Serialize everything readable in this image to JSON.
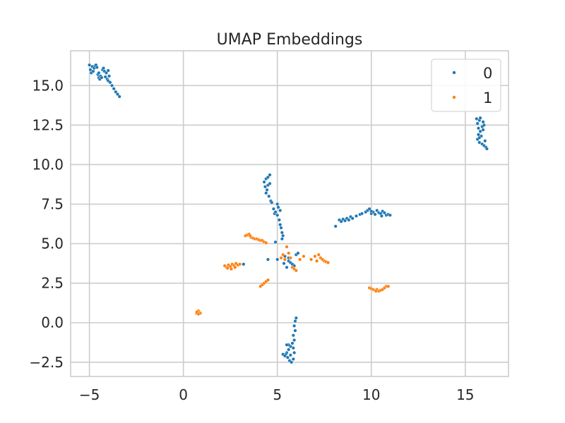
{
  "chart_data": {
    "type": "scatter",
    "title": "UMAP Embeddings",
    "xlabel": "",
    "ylabel": "",
    "xlim": [
      -6.0,
      17.3
    ],
    "ylim": [
      -3.4,
      17.2
    ],
    "xticks": [
      -5,
      0,
      5,
      10,
      15
    ],
    "xtick_labels": [
      "−5",
      "0",
      "5",
      "10",
      "15"
    ],
    "yticks": [
      -2.5,
      0.0,
      2.5,
      5.0,
      7.5,
      10.0,
      12.5,
      15.0
    ],
    "ytick_labels": [
      "−2.5",
      "0.0",
      "2.5",
      "5.0",
      "7.5",
      "10.0",
      "12.5",
      "15.0"
    ],
    "grid": true,
    "legend_position": "top-right",
    "colors": {
      "0": "#1f77b4",
      "1": "#ff7f0e",
      "grid": "#cccccc",
      "axes_edge": "#cccccc"
    },
    "series": [
      {
        "name": "0",
        "color": "#1f77b4",
        "points": [
          [
            -5.0,
            16.3
          ],
          [
            -4.95,
            16.0
          ],
          [
            -4.9,
            15.8
          ],
          [
            -4.85,
            16.2
          ],
          [
            -4.8,
            15.9
          ],
          [
            -4.75,
            16.1
          ],
          [
            -4.7,
            16.25
          ],
          [
            -4.65,
            16.3
          ],
          [
            -4.6,
            16.15
          ],
          [
            -4.55,
            15.7
          ],
          [
            -4.5,
            15.5
          ],
          [
            -4.45,
            15.4
          ],
          [
            -4.4,
            15.6
          ],
          [
            -4.35,
            15.5
          ],
          [
            -4.3,
            16.0
          ],
          [
            -4.25,
            16.1
          ],
          [
            -4.2,
            15.9
          ],
          [
            -4.1,
            15.8
          ],
          [
            -4.05,
            15.4
          ],
          [
            -4.0,
            15.3
          ],
          [
            -3.95,
            15.6
          ],
          [
            -3.9,
            15.2
          ],
          [
            -3.8,
            15.0
          ],
          [
            -3.7,
            14.8
          ],
          [
            -3.6,
            14.6
          ],
          [
            -3.5,
            14.45
          ],
          [
            -3.4,
            14.3
          ],
          [
            -4.5,
            15.8
          ],
          [
            -4.0,
            15.95
          ],
          [
            -4.15,
            15.55
          ],
          [
            15.6,
            12.9
          ],
          [
            15.65,
            12.6
          ],
          [
            15.7,
            12.3
          ],
          [
            15.75,
            12.8
          ],
          [
            15.7,
            11.9
          ],
          [
            15.65,
            11.6
          ],
          [
            15.75,
            11.4
          ],
          [
            15.8,
            12.1
          ],
          [
            15.85,
            11.8
          ],
          [
            15.9,
            12.4
          ],
          [
            15.95,
            12.7
          ],
          [
            15.9,
            11.3
          ],
          [
            16.0,
            11.2
          ],
          [
            16.05,
            11.5
          ],
          [
            16.1,
            11.1
          ],
          [
            16.15,
            11.0
          ],
          [
            15.8,
            12.95
          ],
          [
            16.0,
            12.5
          ],
          [
            15.75,
            11.7
          ],
          [
            15.95,
            12.2
          ],
          [
            4.3,
            8.9
          ],
          [
            4.35,
            8.6
          ],
          [
            4.4,
            9.1
          ],
          [
            4.45,
            8.4
          ],
          [
            4.5,
            9.2
          ],
          [
            4.55,
            8.0
          ],
          [
            4.5,
            8.7
          ],
          [
            4.6,
            9.35
          ],
          [
            4.65,
            7.7
          ],
          [
            4.7,
            7.6
          ],
          [
            4.4,
            8.2
          ],
          [
            4.6,
            8.8
          ],
          [
            4.8,
            7.2
          ],
          [
            4.85,
            6.9
          ],
          [
            4.9,
            7.0
          ],
          [
            5.0,
            7.5
          ],
          [
            5.05,
            7.3
          ],
          [
            5.0,
            6.8
          ],
          [
            5.1,
            6.5
          ],
          [
            5.15,
            6.2
          ],
          [
            5.2,
            6.0
          ],
          [
            5.25,
            5.7
          ],
          [
            5.3,
            5.5
          ],
          [
            5.25,
            5.3
          ],
          [
            5.15,
            7.1
          ],
          [
            8.1,
            6.1
          ],
          [
            8.3,
            6.5
          ],
          [
            8.4,
            6.4
          ],
          [
            8.5,
            6.55
          ],
          [
            8.6,
            6.45
          ],
          [
            8.7,
            6.6
          ],
          [
            8.8,
            6.5
          ],
          [
            8.9,
            6.7
          ],
          [
            9.0,
            6.6
          ],
          [
            9.2,
            6.75
          ],
          [
            9.4,
            6.85
          ],
          [
            9.5,
            6.9
          ],
          [
            9.7,
            7.0
          ],
          [
            9.8,
            7.1
          ],
          [
            9.9,
            7.2
          ],
          [
            10.0,
            6.9
          ],
          [
            10.1,
            7.0
          ],
          [
            10.2,
            6.85
          ],
          [
            10.3,
            7.1
          ],
          [
            10.4,
            6.95
          ],
          [
            10.5,
            6.9
          ],
          [
            10.6,
            7.05
          ],
          [
            10.7,
            6.95
          ],
          [
            10.8,
            6.8
          ],
          [
            10.9,
            6.85
          ],
          [
            11.0,
            6.8
          ],
          [
            10.0,
            7.05
          ],
          [
            10.55,
            6.75
          ],
          [
            3.2,
            3.7
          ],
          [
            4.5,
            4.0
          ],
          [
            5.0,
            4.0
          ],
          [
            4.9,
            5.1
          ],
          [
            5.4,
            4.2
          ],
          [
            5.6,
            3.9
          ],
          [
            5.7,
            3.8
          ],
          [
            5.8,
            3.7
          ],
          [
            5.9,
            3.6
          ],
          [
            6.0,
            4.3
          ],
          [
            5.5,
            3.5
          ],
          [
            5.6,
            4.1
          ],
          [
            6.1,
            4.4
          ],
          [
            5.35,
            3.75
          ],
          [
            6.0,
            0.3
          ],
          [
            5.95,
            0.1
          ],
          [
            5.9,
            -0.2
          ],
          [
            5.95,
            -0.5
          ],
          [
            5.85,
            -0.8
          ],
          [
            5.9,
            -1.1
          ],
          [
            5.8,
            -1.3
          ],
          [
            5.7,
            -1.5
          ],
          [
            5.6,
            -1.7
          ],
          [
            5.5,
            -1.9
          ],
          [
            5.45,
            -2.0
          ],
          [
            5.55,
            -2.2
          ],
          [
            5.65,
            -2.4
          ],
          [
            5.75,
            -2.5
          ],
          [
            5.85,
            -2.3
          ],
          [
            5.9,
            -1.9
          ],
          [
            5.6,
            -1.4
          ],
          [
            5.3,
            -2.0
          ],
          [
            5.4,
            -2.1
          ],
          [
            5.5,
            -1.4
          ],
          [
            5.85,
            -1.6
          ],
          [
            5.7,
            -2.05
          ]
        ]
      },
      {
        "name": "1",
        "color": "#ff7f0e",
        "points": [
          [
            0.7,
            0.6
          ],
          [
            0.75,
            0.7
          ],
          [
            0.8,
            0.75
          ],
          [
            0.85,
            0.65
          ],
          [
            0.9,
            0.6
          ],
          [
            0.8,
            0.55
          ],
          [
            0.72,
            0.68
          ],
          [
            2.2,
            3.6
          ],
          [
            2.3,
            3.5
          ],
          [
            2.4,
            3.65
          ],
          [
            2.5,
            3.55
          ],
          [
            2.6,
            3.7
          ],
          [
            2.7,
            3.6
          ],
          [
            2.8,
            3.75
          ],
          [
            2.9,
            3.65
          ],
          [
            3.0,
            3.7
          ],
          [
            2.35,
            3.45
          ],
          [
            2.55,
            3.4
          ],
          [
            2.75,
            3.5
          ],
          [
            3.3,
            5.5
          ],
          [
            3.4,
            5.55
          ],
          [
            3.5,
            5.6
          ],
          [
            3.6,
            5.4
          ],
          [
            3.7,
            5.35
          ],
          [
            3.8,
            5.3
          ],
          [
            3.9,
            5.3
          ],
          [
            4.0,
            5.25
          ],
          [
            4.1,
            5.2
          ],
          [
            4.2,
            5.2
          ],
          [
            4.3,
            5.1
          ],
          [
            4.4,
            5.05
          ],
          [
            3.55,
            5.5
          ],
          [
            4.1,
            2.3
          ],
          [
            4.2,
            2.4
          ],
          [
            4.3,
            2.5
          ],
          [
            4.4,
            2.6
          ],
          [
            4.5,
            2.7
          ],
          [
            5.3,
            4.3
          ],
          [
            5.5,
            4.8
          ],
          [
            5.6,
            4.4
          ],
          [
            5.7,
            4.1
          ],
          [
            5.4,
            4.0
          ],
          [
            5.8,
            3.5
          ],
          [
            5.9,
            3.4
          ],
          [
            6.0,
            3.3
          ],
          [
            6.2,
            4.0
          ],
          [
            6.4,
            4.2
          ],
          [
            6.8,
            4.0
          ],
          [
            7.0,
            4.2
          ],
          [
            7.1,
            3.9
          ],
          [
            7.2,
            4.3
          ],
          [
            7.3,
            4.1
          ],
          [
            7.4,
            4.0
          ],
          [
            7.5,
            3.9
          ],
          [
            7.6,
            3.85
          ],
          [
            7.7,
            3.8
          ],
          [
            5.2,
            4.1
          ],
          [
            9.9,
            2.2
          ],
          [
            10.0,
            2.15
          ],
          [
            10.1,
            2.1
          ],
          [
            10.2,
            2.05
          ],
          [
            10.3,
            2.1
          ],
          [
            10.4,
            2.0
          ],
          [
            10.5,
            2.05
          ],
          [
            10.6,
            2.1
          ],
          [
            10.7,
            2.2
          ],
          [
            10.8,
            2.3
          ],
          [
            10.9,
            2.3
          ],
          [
            10.25,
            2.0
          ]
        ]
      }
    ]
  }
}
